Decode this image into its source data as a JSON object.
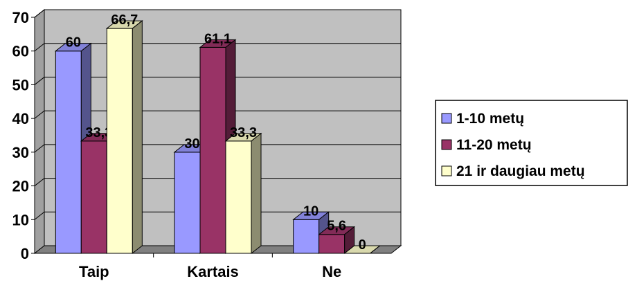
{
  "chart_data": {
    "type": "bar",
    "categories": [
      "Taip",
      "Kartais",
      "Ne"
    ],
    "series": [
      {
        "name": "1-10 metų",
        "values": [
          60,
          30,
          10
        ],
        "labels": [
          "60",
          "30",
          "10"
        ],
        "color": "#9999ff"
      },
      {
        "name": "11-20 metų",
        "values": [
          33.3,
          61.1,
          5.6
        ],
        "labels": [
          "33,3",
          "61,1",
          "5,6"
        ],
        "color": "#993366"
      },
      {
        "name": "21 ir daugiau metų",
        "values": [
          66.7,
          33.3,
          0
        ],
        "labels": [
          "66,7",
          "33,3",
          "0"
        ],
        "color": "#ffffcc"
      }
    ],
    "ylim": [
      0,
      70
    ],
    "yticks": [
      0,
      10,
      20,
      30,
      40,
      50,
      60,
      70
    ],
    "grid": true,
    "legend": "right",
    "plot_background": "#c0c0c0",
    "three_d": true
  }
}
